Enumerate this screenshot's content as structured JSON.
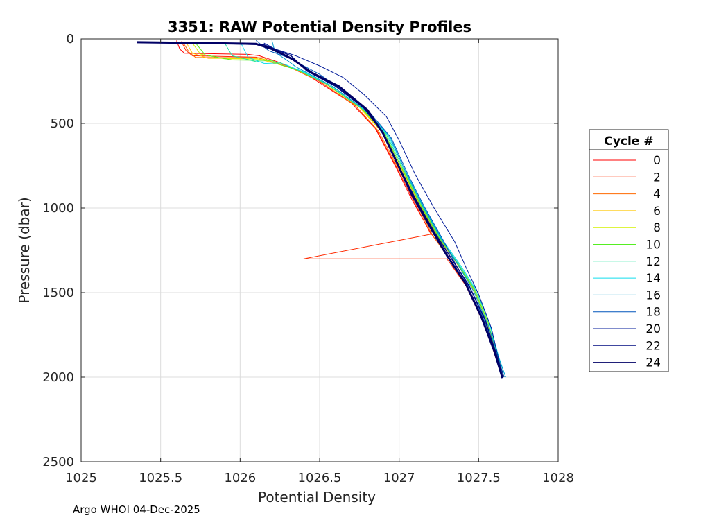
{
  "chart_data": {
    "type": "line",
    "title": "3351: RAW Potential Density Profiles",
    "xlabel": "Potential Density",
    "ylabel": "Pressure (dbar)",
    "xlim": [
      1025,
      1028
    ],
    "ylim": [
      0,
      2500
    ],
    "y_reversed": true,
    "grid": true,
    "x_ticks": [
      1025,
      1025.5,
      1026,
      1026.5,
      1027,
      1027.5,
      1028
    ],
    "x_tick_labels": [
      "1025",
      "1025.5",
      "1026",
      "1026.5",
      "1027",
      "1027.5",
      "1028"
    ],
    "y_ticks": [
      0,
      500,
      1000,
      1500,
      2000,
      2500
    ],
    "y_tick_labels": [
      "0",
      "500",
      "1000",
      "1500",
      "2000",
      "2500"
    ],
    "legend": {
      "title": "Cycle #",
      "placement": "outside-right",
      "entries": [
        {
          "label": "0",
          "color": "#ff0000"
        },
        {
          "label": "2",
          "color": "#ff2a00"
        },
        {
          "label": "4",
          "color": "#ff6a00"
        },
        {
          "label": "6",
          "color": "#ffc800"
        },
        {
          "label": "8",
          "color": "#d4f000"
        },
        {
          "label": "10",
          "color": "#55ee22"
        },
        {
          "label": "12",
          "color": "#22e2a0"
        },
        {
          "label": "14",
          "color": "#11ddee"
        },
        {
          "label": "16",
          "color": "#0099cc"
        },
        {
          "label": "18",
          "color": "#0055bb"
        },
        {
          "label": "20",
          "color": "#001a99"
        },
        {
          "label": "22",
          "color": "#000c80"
        },
        {
          "label": "24",
          "color": "#000066"
        }
      ]
    },
    "series": [
      {
        "name": "0",
        "color": "#ff0000",
        "points": [
          [
            1025.6,
            10
          ],
          [
            1025.62,
            60
          ],
          [
            1025.65,
            85
          ],
          [
            1026.05,
            92
          ],
          [
            1026.12,
            100
          ],
          [
            1026.25,
            140
          ],
          [
            1026.45,
            230
          ],
          [
            1026.7,
            380
          ],
          [
            1026.85,
            530
          ],
          [
            1026.98,
            760
          ],
          [
            1027.08,
            950
          ],
          [
            1027.2,
            1150
          ],
          [
            1027.32,
            1300
          ],
          [
            1027.42,
            1450
          ],
          [
            1027.52,
            1650
          ],
          [
            1027.6,
            1850
          ],
          [
            1027.65,
            2000
          ]
        ]
      },
      {
        "name": "2",
        "color": "#ff2a00",
        "points": [
          [
            1025.63,
            15
          ],
          [
            1025.66,
            70
          ],
          [
            1025.7,
            100
          ],
          [
            1026.1,
            108
          ],
          [
            1026.18,
            130
          ],
          [
            1026.3,
            160
          ],
          [
            1026.48,
            240
          ],
          [
            1026.72,
            390
          ],
          [
            1026.86,
            540
          ],
          [
            1026.99,
            770
          ],
          [
            1027.09,
            955
          ],
          [
            1027.2,
            1155
          ],
          [
            1026.4,
            1300
          ],
          [
            1027.3,
            1300
          ],
          [
            1027.42,
            1460
          ],
          [
            1027.52,
            1660
          ],
          [
            1027.6,
            1860
          ],
          [
            1027.65,
            2000
          ]
        ]
      },
      {
        "name": "4",
        "color": "#ff6a00",
        "points": [
          [
            1025.64,
            20
          ],
          [
            1025.68,
            80
          ],
          [
            1025.72,
            110
          ],
          [
            1026.15,
            112
          ],
          [
            1026.2,
            140
          ],
          [
            1026.32,
            170
          ],
          [
            1026.5,
            250
          ],
          [
            1026.73,
            400
          ],
          [
            1026.87,
            545
          ],
          [
            1027.0,
            775
          ],
          [
            1027.1,
            960
          ],
          [
            1027.21,
            1160
          ],
          [
            1027.32,
            1310
          ],
          [
            1027.43,
            1465
          ],
          [
            1027.53,
            1665
          ],
          [
            1027.6,
            1865
          ],
          [
            1027.65,
            2000
          ]
        ]
      },
      {
        "name": "6",
        "color": "#ffc800",
        "points": [
          [
            1025.66,
            20
          ],
          [
            1025.7,
            85
          ],
          [
            1025.8,
            115
          ],
          [
            1026.1,
            115
          ],
          [
            1026.22,
            145
          ],
          [
            1026.33,
            175
          ],
          [
            1026.52,
            255
          ],
          [
            1026.75,
            405
          ],
          [
            1026.89,
            550
          ],
          [
            1027.02,
            780
          ],
          [
            1027.12,
            965
          ],
          [
            1027.24,
            1165
          ],
          [
            1027.35,
            1310
          ],
          [
            1027.46,
            1470
          ],
          [
            1027.55,
            1670
          ],
          [
            1027.61,
            1870
          ],
          [
            1027.65,
            2000
          ]
        ]
      },
      {
        "name": "8",
        "color": "#d4f000",
        "points": [
          [
            1025.7,
            25
          ],
          [
            1025.75,
            90
          ],
          [
            1025.9,
            118
          ],
          [
            1026.15,
            120
          ],
          [
            1026.24,
            150
          ],
          [
            1026.35,
            180
          ],
          [
            1026.53,
            260
          ],
          [
            1026.76,
            410
          ],
          [
            1026.9,
            555
          ],
          [
            1027.03,
            785
          ],
          [
            1027.13,
            970
          ],
          [
            1027.25,
            1170
          ],
          [
            1027.36,
            1315
          ],
          [
            1027.47,
            1475
          ],
          [
            1027.56,
            1675
          ],
          [
            1027.61,
            1875
          ],
          [
            1027.66,
            2000
          ]
        ]
      },
      {
        "name": "10",
        "color": "#55ee22",
        "points": [
          [
            1025.72,
            25
          ],
          [
            1025.78,
            95
          ],
          [
            1025.95,
            125
          ],
          [
            1026.2,
            128
          ],
          [
            1026.26,
            155
          ],
          [
            1026.36,
            185
          ],
          [
            1026.54,
            265
          ],
          [
            1026.77,
            415
          ],
          [
            1026.91,
            560
          ],
          [
            1027.03,
            790
          ],
          [
            1027.13,
            975
          ],
          [
            1027.25,
            1175
          ],
          [
            1027.36,
            1320
          ],
          [
            1027.47,
            1480
          ],
          [
            1027.56,
            1680
          ],
          [
            1027.62,
            1880
          ],
          [
            1027.66,
            2000
          ]
        ]
      },
      {
        "name": "12",
        "color": "#22e2a0",
        "points": [
          [
            1025.9,
            20
          ],
          [
            1025.95,
            100
          ],
          [
            1026.1,
            135
          ],
          [
            1026.25,
            140
          ],
          [
            1026.3,
            160
          ],
          [
            1026.38,
            190
          ],
          [
            1026.55,
            270
          ],
          [
            1026.78,
            420
          ],
          [
            1026.92,
            565
          ],
          [
            1027.04,
            795
          ],
          [
            1027.14,
            980
          ],
          [
            1027.26,
            1180
          ],
          [
            1027.37,
            1325
          ],
          [
            1027.48,
            1485
          ],
          [
            1027.57,
            1685
          ],
          [
            1027.62,
            1885
          ],
          [
            1027.66,
            2000
          ]
        ]
      },
      {
        "name": "14",
        "color": "#11ddee",
        "points": [
          [
            1026.0,
            15
          ],
          [
            1026.05,
            110
          ],
          [
            1026.15,
            145
          ],
          [
            1026.28,
            150
          ],
          [
            1026.33,
            170
          ],
          [
            1026.4,
            195
          ],
          [
            1026.57,
            275
          ],
          [
            1026.79,
            425
          ],
          [
            1026.93,
            570
          ],
          [
            1027.05,
            800
          ],
          [
            1027.15,
            985
          ],
          [
            1027.27,
            1185
          ],
          [
            1027.38,
            1330
          ],
          [
            1027.49,
            1490
          ],
          [
            1027.57,
            1690
          ],
          [
            1027.63,
            1890
          ],
          [
            1027.67,
            2000
          ]
        ]
      },
      {
        "name": "16",
        "color": "#0099cc",
        "points": [
          [
            1026.2,
            10
          ],
          [
            1026.22,
            80
          ],
          [
            1026.3,
            130
          ],
          [
            1026.35,
            165
          ],
          [
            1026.42,
            200
          ],
          [
            1026.58,
            280
          ],
          [
            1026.8,
            430
          ],
          [
            1026.94,
            575
          ],
          [
            1027.05,
            805
          ],
          [
            1027.15,
            990
          ],
          [
            1027.27,
            1190
          ],
          [
            1027.37,
            1335
          ],
          [
            1027.47,
            1495
          ],
          [
            1027.56,
            1695
          ],
          [
            1027.63,
            1895
          ],
          [
            1027.67,
            2000
          ]
        ]
      },
      {
        "name": "18",
        "color": "#0055bb",
        "points": [
          [
            1026.1,
            10
          ],
          [
            1026.18,
            70
          ],
          [
            1026.3,
            110
          ],
          [
            1026.4,
            160
          ],
          [
            1026.5,
            210
          ],
          [
            1026.62,
            290
          ],
          [
            1026.82,
            440
          ],
          [
            1026.95,
            585
          ],
          [
            1027.06,
            810
          ],
          [
            1027.16,
            995
          ],
          [
            1027.28,
            1195
          ],
          [
            1027.36,
            1340
          ],
          [
            1027.46,
            1500
          ],
          [
            1027.55,
            1700
          ],
          [
            1027.62,
            1900
          ],
          [
            1027.66,
            2000
          ]
        ]
      },
      {
        "name": "20",
        "color": "#001a99",
        "points": [
          [
            1026.15,
            25
          ],
          [
            1026.22,
            60
          ],
          [
            1026.35,
            100
          ],
          [
            1026.5,
            160
          ],
          [
            1026.65,
            230
          ],
          [
            1026.78,
            330
          ],
          [
            1026.92,
            460
          ],
          [
            1027.0,
            600
          ],
          [
            1027.1,
            800
          ],
          [
            1027.22,
            1000
          ],
          [
            1027.35,
            1200
          ],
          [
            1027.42,
            1350
          ],
          [
            1027.5,
            1510
          ],
          [
            1027.58,
            1710
          ],
          [
            1027.63,
            1910
          ],
          [
            1027.66,
            2000
          ]
        ]
      },
      {
        "name": "22",
        "color": "#000c80",
        "points": [
          [
            1025.4,
            20
          ],
          [
            1025.9,
            28
          ],
          [
            1026.15,
            35
          ],
          [
            1026.32,
            100
          ],
          [
            1026.42,
            190
          ],
          [
            1026.6,
            280
          ],
          [
            1026.78,
            410
          ],
          [
            1026.9,
            560
          ],
          [
            1027.0,
            760
          ],
          [
            1027.1,
            940
          ],
          [
            1027.22,
            1140
          ],
          [
            1027.33,
            1300
          ],
          [
            1027.44,
            1460
          ],
          [
            1027.54,
            1660
          ],
          [
            1027.61,
            1860
          ],
          [
            1027.65,
            2000
          ]
        ]
      },
      {
        "name": "24",
        "color": "#000066",
        "points": [
          [
            1025.35,
            20
          ],
          [
            1025.8,
            25
          ],
          [
            1026.1,
            30
          ],
          [
            1026.2,
            60
          ],
          [
            1026.33,
            120
          ],
          [
            1026.45,
            200
          ],
          [
            1026.62,
            280
          ],
          [
            1026.8,
            420
          ],
          [
            1026.9,
            560
          ],
          [
            1026.98,
            720
          ],
          [
            1027.08,
            920
          ],
          [
            1027.2,
            1120
          ],
          [
            1027.3,
            1280
          ],
          [
            1027.42,
            1450
          ],
          [
            1027.52,
            1650
          ],
          [
            1027.6,
            1850
          ],
          [
            1027.65,
            2005
          ]
        ]
      }
    ],
    "footer": "Argo WHOI 04-Dec-2025"
  }
}
